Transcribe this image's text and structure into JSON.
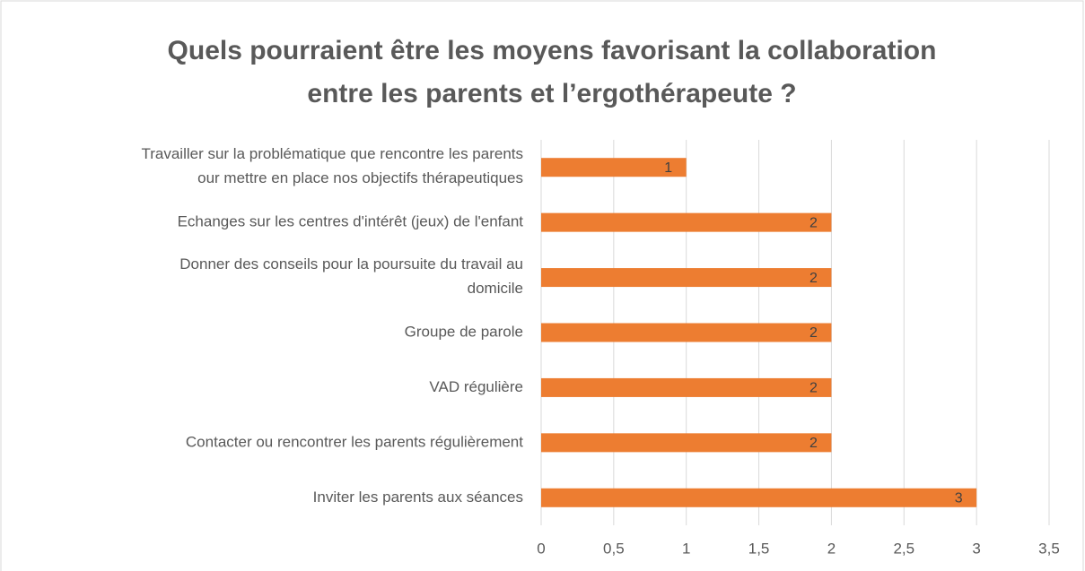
{
  "chart_data": {
    "type": "hbar",
    "title": "Quels pourraient être les moyens favorisant la collaboration\nentre les parents et l’ergothérapeute ?",
    "categories": [
      "Travailler sur la problématique que rencontre les parents\nour mettre en place nos objectifs thérapeutiques",
      "Echanges sur les centres d'intérêt (jeux) de l'enfant",
      "Donner des conseils pour la poursuite du travail au\ndomicile",
      "Groupe de parole",
      "VAD régulière",
      "Contacter ou rencontrer les parents régulièrement",
      "Inviter les parents aux séances"
    ],
    "values": [
      1,
      2,
      2,
      2,
      2,
      2,
      3
    ],
    "color": "#ed7d31",
    "xlim": [
      0,
      3.5
    ],
    "xticks": [
      0,
      {
        "value": 0.5,
        "label": "0,5"
      },
      1,
      {
        "value": 1.5,
        "label": "1,5"
      },
      2,
      {
        "value": 2.5,
        "label": "2,5"
      },
      3,
      {
        "value": 3.5,
        "label": "3,5"
      }
    ],
    "grid": true
  }
}
